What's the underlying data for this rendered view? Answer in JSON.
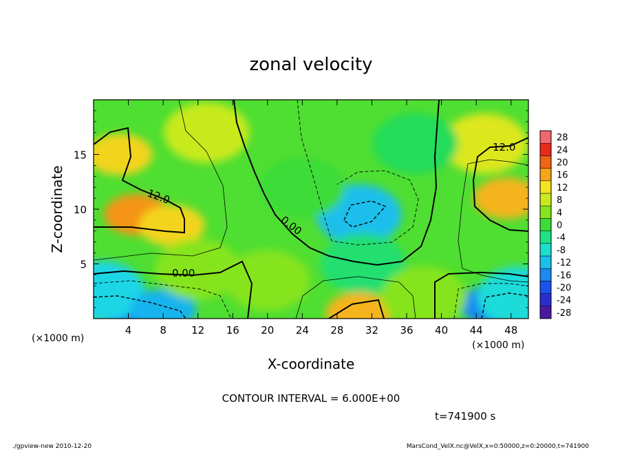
{
  "chart_data": {
    "type": "heatmap",
    "title": "zonal velocity",
    "xlabel": "X-coordinate",
    "ylabel": "Z-coordinate",
    "x_unit": "(×1000 m)",
    "z_unit": "(×1000 m)",
    "xlim": [
      0,
      50
    ],
    "zlim": [
      0,
      20
    ],
    "x_ticks": [
      4,
      8,
      12,
      16,
      20,
      24,
      28,
      32,
      36,
      40,
      44,
      48
    ],
    "z_ticks": [
      5,
      10,
      15
    ],
    "colorbar_ticks": [
      28,
      24,
      20,
      16,
      12,
      8,
      4,
      0,
      -4,
      -8,
      -12,
      -16,
      -20,
      -24,
      -28
    ],
    "colorbar_range": [
      -30,
      30
    ],
    "contour_labels": [
      "12.0",
      "12.0",
      "0.00",
      "0.00"
    ],
    "contour_interval_text": "CONTOUR INTERVAL = 6.000E+00",
    "time_text": "t=741900 s",
    "features": [
      {
        "x": 3,
        "z": 15,
        "value": 13
      },
      {
        "x": 5,
        "z": 9.5,
        "value": 17
      },
      {
        "x": 9,
        "z": 8.5,
        "value": 13
      },
      {
        "x": 13,
        "z": 17,
        "value": 8
      },
      {
        "x": 30.5,
        "z": 9.5,
        "value": -12
      },
      {
        "x": 31,
        "z": 5,
        "value": -3
      },
      {
        "x": 47.5,
        "z": 11,
        "value": 15
      },
      {
        "x": 45,
        "z": 16,
        "value": 10
      },
      {
        "x": 4,
        "z": 1,
        "value": -17
      },
      {
        "x": 1,
        "z": 2.5,
        "value": -10
      },
      {
        "x": 8,
        "z": 0.8,
        "value": -13
      },
      {
        "x": 46,
        "z": 1.2,
        "value": -16
      },
      {
        "x": 49,
        "z": 2,
        "value": -9
      },
      {
        "x": 30.5,
        "z": 0.5,
        "value": 15
      },
      {
        "x": 20,
        "z": 3.5,
        "value": 4
      },
      {
        "x": 12,
        "z": 4.5,
        "value": 4
      },
      {
        "x": 38,
        "z": 2,
        "value": 4
      },
      {
        "x": 24,
        "z": 12,
        "value": 0
      },
      {
        "x": 37,
        "z": 16,
        "value": -2
      }
    ]
  },
  "footer": {
    "left": "./gpview-new  2010-12-20",
    "right": "MarsCond_VelX.nc@VelX,x=0:50000,z=0:20000,t=741900"
  }
}
